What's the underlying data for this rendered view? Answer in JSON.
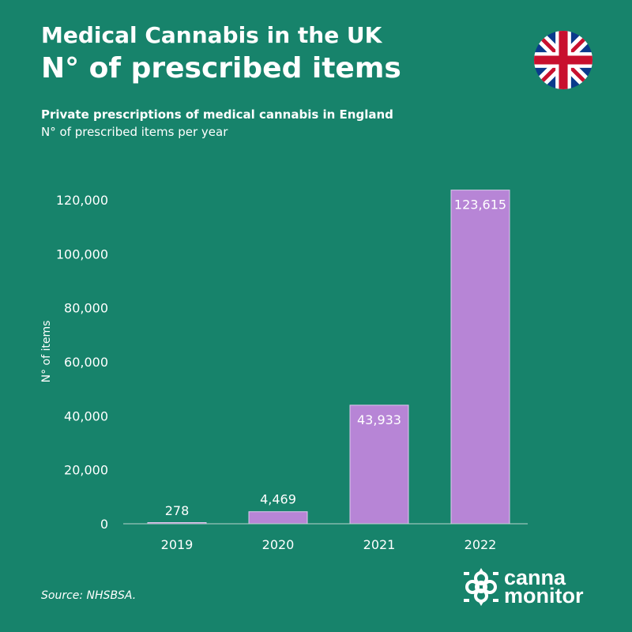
{
  "header": {
    "title": "Medical Cannabis in the UK",
    "subtitle": "N° of prescribed items"
  },
  "chart_data": {
    "type": "bar",
    "title": "Private prescriptions of medical cannabis in England",
    "subtitle": "N° of prescribed items per year",
    "ylabel": "N° of items",
    "xlabel": "",
    "categories": [
      "2019",
      "2020",
      "2021",
      "2022"
    ],
    "values": [
      278,
      4469,
      43933,
      123615
    ],
    "data_labels": [
      "278",
      "4,469",
      "43,933",
      "123,615"
    ],
    "yticks": [
      0,
      20000,
      40000,
      60000,
      80000,
      100000,
      120000
    ],
    "ytick_labels": [
      "0",
      "20,000",
      "40,000",
      "60,000",
      "80,000",
      "100,000",
      "120,000"
    ],
    "ylim": [
      0,
      123615
    ],
    "grid": false,
    "colors": {
      "bar": "#b785d6",
      "background": "#17836b"
    }
  },
  "footer": {
    "source": "Source: NHSBSA.",
    "logo_line1": "canna",
    "logo_line2": "monitor"
  },
  "icons": {
    "flag": "uk-flag-icon",
    "logo": "canna-monitor-flower-icon"
  }
}
